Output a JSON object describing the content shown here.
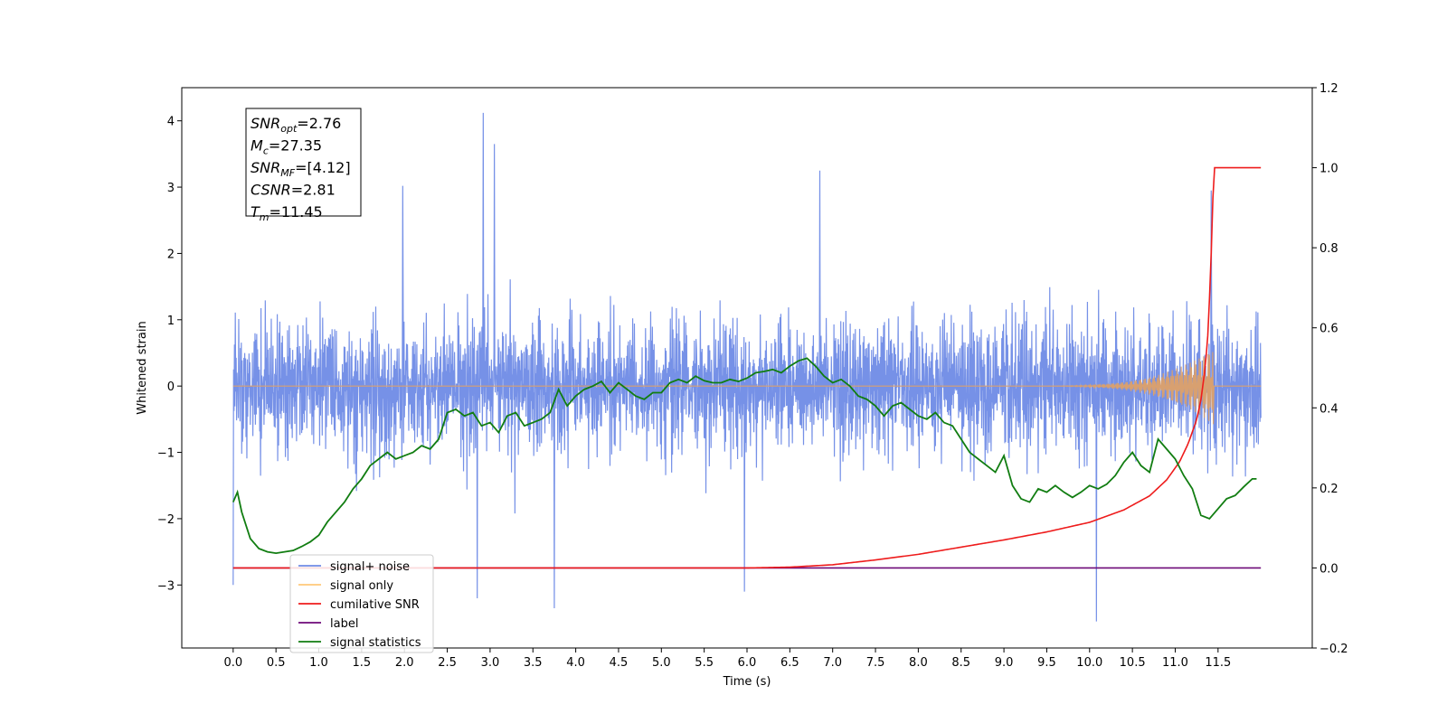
{
  "chart_data": {
    "type": "line",
    "xlabel": "Time (s)",
    "ylabel_left": "Whitened strain",
    "ylabel_right": "",
    "xlim": [
      -0.6,
      12.6
    ],
    "ylim_left": [
      -3.95,
      4.5
    ],
    "ylim_right": [
      -0.2,
      1.2
    ],
    "x_ticks": [
      0.0,
      0.5,
      1.0,
      1.5,
      2.0,
      2.5,
      3.0,
      3.5,
      4.0,
      4.5,
      5.0,
      5.5,
      6.0,
      6.5,
      7.0,
      7.5,
      8.0,
      8.5,
      9.0,
      9.5,
      10.0,
      10.5,
      11.0,
      11.5
    ],
    "x_tick_labels": [
      "0.0",
      "0.5",
      "1.0",
      "1.5",
      "2.0",
      "2.5",
      "3.0",
      "3.5",
      "4.0",
      "4.5",
      "5.0",
      "5.5",
      "6.0",
      "6.5",
      "7.0",
      "7.5",
      "8.0",
      "8.5",
      "9.0",
      "9.5",
      "10.0",
      "10.5",
      "11.0",
      "11.5"
    ],
    "y_left_ticks": [
      -3,
      -2,
      -1,
      0,
      1,
      2,
      3,
      4
    ],
    "y_left_tick_labels": [
      "−3",
      "−2",
      "−1",
      "0",
      "1",
      "2",
      "3",
      "4"
    ],
    "y_right_ticks": [
      -0.2,
      0.0,
      0.2,
      0.4,
      0.6,
      0.8,
      1.0,
      1.2
    ],
    "y_right_tick_labels": [
      "−0.2",
      "0.0",
      "0.2",
      "0.4",
      "0.6",
      "0.8",
      "1.0",
      "1.2"
    ],
    "legend_position": "lower-left",
    "series": [
      {
        "name": "signal+ noise",
        "color": "#6f8be6",
        "axis": "left",
        "x_range": [
          0.0,
          12.0
        ],
        "typical_band": [
          -1.6,
          1.7
        ],
        "peaks": [
          {
            "x": 2.92,
            "y": 4.12
          },
          {
            "x": 3.05,
            "y": 3.65
          },
          {
            "x": 6.85,
            "y": 3.25
          },
          {
            "x": 1.98,
            "y": 3.02
          },
          {
            "x": 11.42,
            "y": 2.95
          },
          {
            "x": 10.08,
            "y": -3.55
          },
          {
            "x": 3.75,
            "y": -3.35
          },
          {
            "x": 2.85,
            "y": -3.2
          },
          {
            "x": 5.97,
            "y": -3.1
          },
          {
            "x": 0.0,
            "y": -3.0
          }
        ]
      },
      {
        "name": "signal only",
        "color": "#ffc87a",
        "axis": "left",
        "x_range": [
          0.0,
          12.0
        ],
        "level": 0.0,
        "chirp_start": 9.0,
        "chirp_peak_x": 11.45,
        "chirp_peak_amplitude": 0.58
      },
      {
        "name": "cumilative SNR",
        "color": "#ee1c1c",
        "axis": "right",
        "x": [
          0.0,
          6.0,
          6.5,
          7.0,
          7.5,
          8.0,
          8.5,
          9.0,
          9.5,
          10.0,
          10.4,
          10.7,
          10.9,
          11.05,
          11.15,
          11.25,
          11.3,
          11.35,
          11.38,
          11.41,
          11.43,
          11.45,
          11.6,
          12.0
        ],
        "values": [
          0.0,
          0.0,
          0.002,
          0.008,
          0.02,
          0.034,
          0.052,
          0.07,
          0.09,
          0.114,
          0.145,
          0.18,
          0.22,
          0.265,
          0.31,
          0.37,
          0.42,
          0.5,
          0.58,
          0.72,
          0.85,
          1.0,
          1.0,
          1.0
        ]
      },
      {
        "name": "label",
        "color": "#6e0a78",
        "axis": "right",
        "x": [
          0.0,
          12.0
        ],
        "values": [
          0.0,
          0.0
        ]
      },
      {
        "name": "signal statistics",
        "color": "#117d11",
        "axis": "left",
        "x": [
          0.0,
          0.05,
          0.1,
          0.2,
          0.3,
          0.4,
          0.5,
          0.6,
          0.7,
          0.8,
          0.9,
          1.0,
          1.1,
          1.2,
          1.3,
          1.4,
          1.5,
          1.6,
          1.7,
          1.8,
          1.9,
          2.0,
          2.1,
          2.2,
          2.3,
          2.4,
          2.5,
          2.6,
          2.7,
          2.8,
          2.9,
          3.0,
          3.1,
          3.2,
          3.3,
          3.4,
          3.5,
          3.6,
          3.7,
          3.8,
          3.9,
          4.0,
          4.1,
          4.2,
          4.3,
          4.4,
          4.5,
          4.6,
          4.7,
          4.8,
          4.9,
          5.0,
          5.1,
          5.2,
          5.3,
          5.4,
          5.5,
          5.6,
          5.7,
          5.8,
          5.9,
          6.0,
          6.1,
          6.2,
          6.3,
          6.4,
          6.5,
          6.6,
          6.7,
          6.8,
          6.9,
          7.0,
          7.1,
          7.2,
          7.3,
          7.4,
          7.5,
          7.6,
          7.7,
          7.8,
          7.9,
          8.0,
          8.1,
          8.2,
          8.3,
          8.4,
          8.5,
          8.6,
          8.7,
          8.8,
          8.9,
          9.0,
          9.1,
          9.2,
          9.3,
          9.4,
          9.5,
          9.6,
          9.7,
          9.8,
          9.9,
          10.0,
          10.1,
          10.2,
          10.3,
          10.4,
          10.5,
          10.6,
          10.7,
          10.8,
          10.9,
          11.0,
          11.1,
          11.2,
          11.3,
          11.4,
          11.5,
          11.6,
          11.7,
          11.8,
          11.9,
          11.95
        ],
        "values": [
          -1.75,
          -1.6,
          -1.9,
          -2.3,
          -2.45,
          -2.5,
          -2.52,
          -2.5,
          -2.48,
          -2.42,
          -2.35,
          -2.25,
          -2.05,
          -1.9,
          -1.75,
          -1.55,
          -1.4,
          -1.2,
          -1.1,
          -1.0,
          -1.1,
          -1.05,
          -1.0,
          -0.9,
          -0.95,
          -0.8,
          -0.4,
          -0.35,
          -0.45,
          -0.4,
          -0.6,
          -0.55,
          -0.7,
          -0.45,
          -0.4,
          -0.6,
          -0.55,
          -0.5,
          -0.4,
          -0.05,
          -0.3,
          -0.15,
          -0.05,
          0.0,
          0.07,
          -0.1,
          0.05,
          -0.05,
          -0.15,
          -0.2,
          -0.1,
          -0.1,
          0.05,
          0.1,
          0.05,
          0.15,
          0.08,
          0.05,
          0.05,
          0.1,
          0.07,
          0.12,
          0.2,
          0.22,
          0.25,
          0.2,
          0.3,
          0.38,
          0.42,
          0.3,
          0.15,
          0.05,
          0.1,
          0.0,
          -0.15,
          -0.2,
          -0.3,
          -0.45,
          -0.3,
          -0.25,
          -0.35,
          -0.45,
          -0.5,
          -0.4,
          -0.55,
          -0.6,
          -0.8,
          -1.0,
          -1.1,
          -1.2,
          -1.3,
          -1.05,
          -1.5,
          -1.7,
          -1.75,
          -1.55,
          -1.6,
          -1.5,
          -1.6,
          -1.68,
          -1.6,
          -1.5,
          -1.55,
          -1.48,
          -1.35,
          -1.15,
          -1.0,
          -1.2,
          -1.3,
          -0.8,
          -0.95,
          -1.1,
          -1.35,
          -1.55,
          -1.95,
          -2.0,
          -1.85,
          -1.7,
          -1.65,
          -1.52,
          -1.4,
          -1.4
        ]
      }
    ],
    "annotation_box": {
      "lines": [
        {
          "name": "SNR",
          "sub": "opt",
          "value": "=2.76"
        },
        {
          "name": "M",
          "sub": "c",
          "value": "=27.35"
        },
        {
          "name": "SNR",
          "sub": "MF",
          "value": "=[4.12]"
        },
        {
          "name": "CSNR",
          "sub": "",
          "value": "=2.81"
        },
        {
          "name": "T",
          "sub": "m",
          "value": "=11.45"
        }
      ]
    },
    "legend_entries": [
      {
        "label": "signal+ noise",
        "color": "#6f8be6"
      },
      {
        "label": "signal only",
        "color": "#ffc87a"
      },
      {
        "label": "cumilative SNR",
        "color": "#ee1c1c"
      },
      {
        "label": "label",
        "color": "#6e0a78"
      },
      {
        "label": "signal statistics",
        "color": "#117d11"
      }
    ]
  }
}
